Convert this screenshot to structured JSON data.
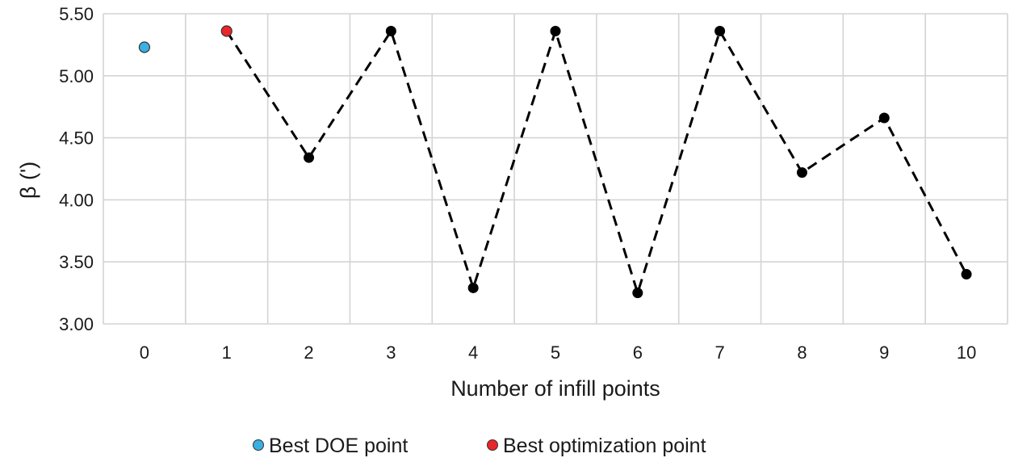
{
  "chart_data": {
    "type": "line",
    "title": "",
    "xlabel": "Number of infill points",
    "ylabel": "β (')",
    "x": [
      0,
      1,
      2,
      3,
      4,
      5,
      6,
      7,
      8,
      9,
      10
    ],
    "x_tick_labels": [
      "0",
      "1",
      "2",
      "3",
      "4",
      "5",
      "6",
      "7",
      "8",
      "9",
      "10"
    ],
    "y_tick_labels": [
      "3.00",
      "3.50",
      "4.00",
      "4.50",
      "5.00",
      "5.50"
    ],
    "ylim": [
      3.0,
      5.5
    ],
    "yticks": [
      3.0,
      3.5,
      4.0,
      4.5,
      5.0,
      5.5
    ],
    "grid": true,
    "legend_position": "bottom-center",
    "series": [
      {
        "values": [
          null,
          5.36,
          4.34,
          5.36,
          3.29,
          5.36,
          3.25,
          5.36,
          4.22,
          4.66,
          3.4
        ],
        "line_style": "dashed",
        "color": "#000000"
      }
    ],
    "highlights": [
      {
        "name": "Best DOE point",
        "x": 0,
        "y": 5.23,
        "color": "#3ab0e2"
      },
      {
        "name": "Best optimization point",
        "x": 1,
        "y": 5.36,
        "color": "#e8262b"
      }
    ],
    "legend": [
      {
        "label": "Best DOE point",
        "color": "#3ab0e2"
      },
      {
        "label": "Best optimization point",
        "color": "#e8262b"
      }
    ]
  }
}
